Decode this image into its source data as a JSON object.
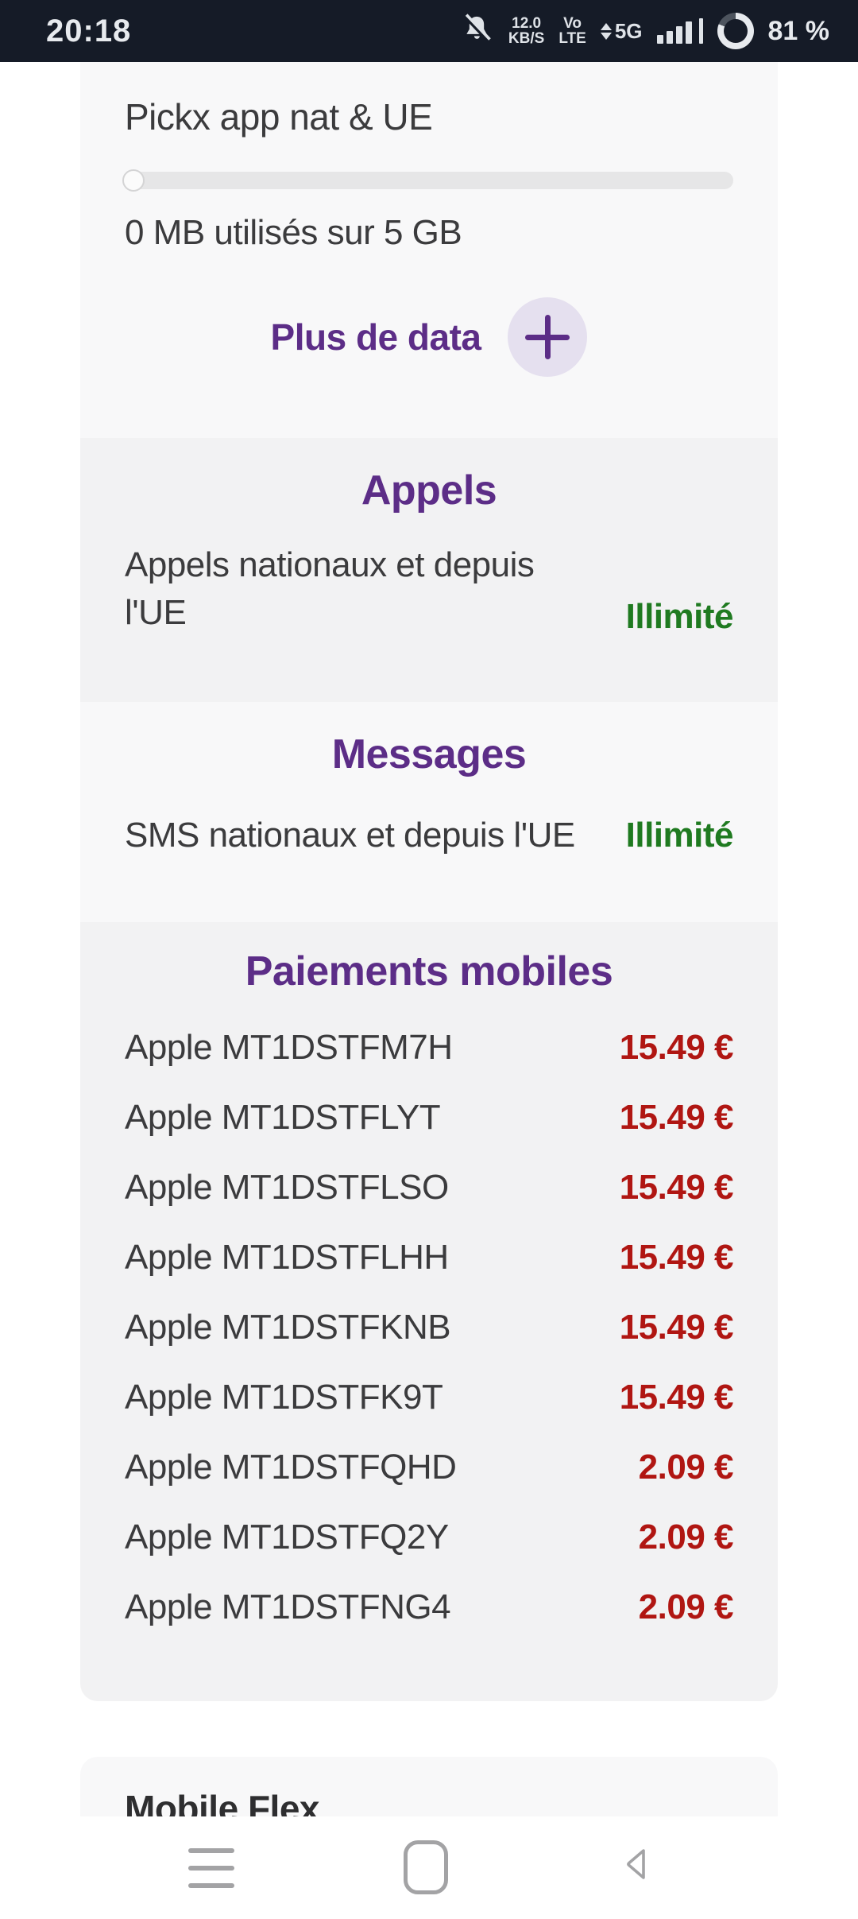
{
  "status_bar": {
    "time": "20:18",
    "net_speed_value": "12.0",
    "net_speed_unit": "KB/S",
    "volte_line1": "Vo",
    "volte_line2": "LTE",
    "network_type": "5G",
    "battery_percent": "81 %"
  },
  "data_section": {
    "title": "Pickx app nat & UE",
    "progress_percent": 0,
    "usage_text": "0 MB utilisés sur 5 GB",
    "more_data_label": "Plus de data"
  },
  "calls_section": {
    "title": "Appels",
    "row_label": "Appels nationaux et depuis l'UE",
    "row_value": "Illimité"
  },
  "messages_section": {
    "title": "Messages",
    "row_label": "SMS nationaux et depuis l'UE",
    "row_value": "Illimité"
  },
  "payments_section": {
    "title": "Paiements mobiles",
    "rows": [
      {
        "label": "Apple MT1DSTFM7H",
        "amount": "15.49 €"
      },
      {
        "label": "Apple MT1DSTFLYT",
        "amount": "15.49 €"
      },
      {
        "label": "Apple MT1DSTFLSO",
        "amount": "15.49 €"
      },
      {
        "label": "Apple MT1DSTFLHH",
        "amount": "15.49 €"
      },
      {
        "label": "Apple MT1DSTFKNB",
        "amount": "15.49 €"
      },
      {
        "label": "Apple MT1DSTFK9T",
        "amount": "15.49 €"
      },
      {
        "label": "Apple MT1DSTFQHD",
        "amount": "2.09 €"
      },
      {
        "label": "Apple MT1DSTFQ2Y",
        "amount": "2.09 €"
      },
      {
        "label": "Apple MT1DSTFNG4",
        "amount": "2.09 €"
      }
    ]
  },
  "next_section": {
    "title": "Mobile Flex"
  },
  "colors": {
    "accent_purple": "#5c2d87",
    "accent_lavender": "#e5e0ef",
    "status_green": "#1f7a20",
    "amount_red": "#b01612",
    "statusbar_bg": "#151b27",
    "card_light": "#f8f8f9",
    "card_dark": "#f2f2f3"
  }
}
